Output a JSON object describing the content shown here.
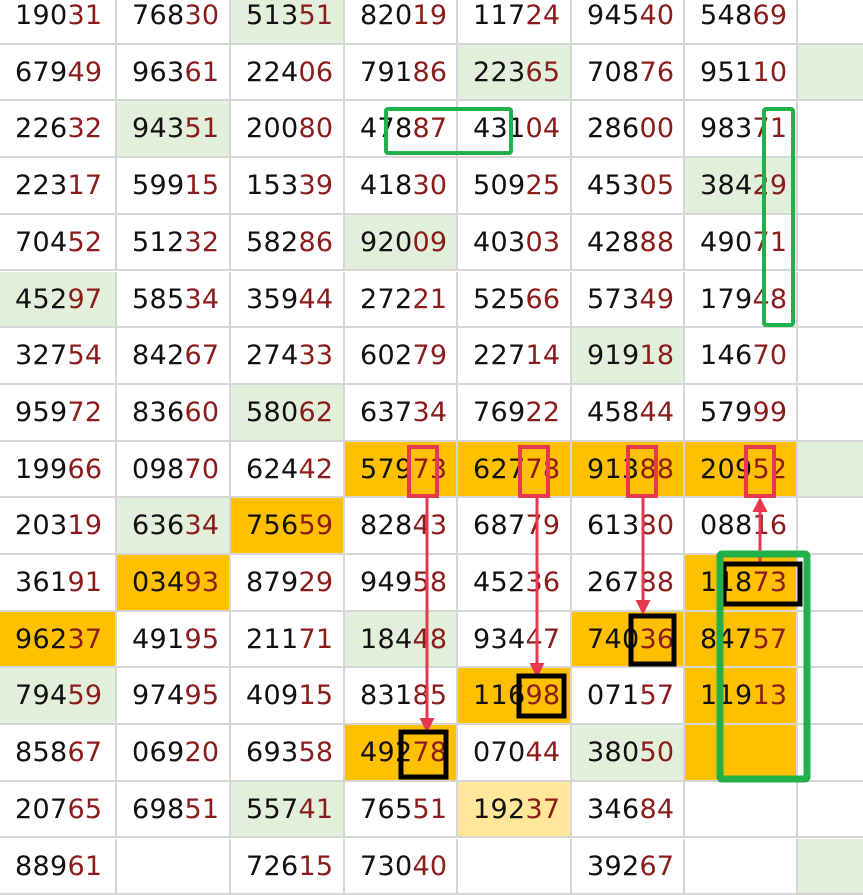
{
  "colors": {
    "green": "#e2efda",
    "orange": "#ffc000",
    "light_yellow": "#ffe699",
    "digit_tail": "#8b1c1c",
    "marker_green": "#22b04a",
    "marker_red": "#e8384f",
    "marker_black": "#000000"
  },
  "rows": [
    [
      "19031",
      "76830",
      "51351",
      "82019",
      "11724",
      "94540",
      "54869",
      ""
    ],
    [
      "67949",
      "96361",
      "22406",
      "79186",
      "22365",
      "70876",
      "95110",
      ""
    ],
    [
      "22632",
      "94351",
      "20080",
      "47887",
      "43104",
      "28600",
      "98371",
      ""
    ],
    [
      "22317",
      "59915",
      "15339",
      "41830",
      "50925",
      "45305",
      "38429",
      ""
    ],
    [
      "70452",
      "51232",
      "58286",
      "92009",
      "40303",
      "42888",
      "49071",
      ""
    ],
    [
      "45297",
      "58534",
      "35944",
      "27221",
      "52566",
      "57349",
      "17948",
      ""
    ],
    [
      "32754",
      "84267",
      "27433",
      "60279",
      "22714",
      "91918",
      "14670",
      ""
    ],
    [
      "95972",
      "83660",
      "58062",
      "63734",
      "76922",
      "45844",
      "57999",
      ""
    ],
    [
      "19966",
      "09870",
      "62442",
      "57973",
      "62778",
      "91388",
      "20952",
      ""
    ],
    [
      "20319",
      "63634",
      "75659",
      "82843",
      "68779",
      "61380",
      "08816",
      ""
    ],
    [
      "36191",
      "03493",
      "87929",
      "94958",
      "45236",
      "26788",
      "11873",
      ""
    ],
    [
      "96237",
      "49195",
      "21171",
      "18448",
      "93447",
      "74036",
      "84757",
      ""
    ],
    [
      "79459",
      "97495",
      "40915",
      "83185",
      "11698",
      "07157",
      "11913",
      ""
    ],
    [
      "85867",
      "06920",
      "69358",
      "49278",
      "07044",
      "38050",
      "",
      ""
    ],
    [
      "20765",
      "69851",
      "55741",
      "76551",
      "19237",
      "34684",
      "",
      ""
    ],
    [
      "88961",
      "",
      "72615",
      "73040",
      "",
      "39267",
      "",
      ""
    ]
  ],
  "highlights": [
    {
      "row": 0,
      "col": 2,
      "color": "green"
    },
    {
      "row": 1,
      "col": 4,
      "color": "green"
    },
    {
      "row": 1,
      "col": 7,
      "color": "green"
    },
    {
      "row": 2,
      "col": 1,
      "color": "green"
    },
    {
      "row": 3,
      "col": 6,
      "color": "green"
    },
    {
      "row": 4,
      "col": 3,
      "color": "green"
    },
    {
      "row": 5,
      "col": 0,
      "color": "green"
    },
    {
      "row": 6,
      "col": 5,
      "color": "green"
    },
    {
      "row": 7,
      "col": 2,
      "color": "green"
    },
    {
      "row": 8,
      "col": 3,
      "color": "orange"
    },
    {
      "row": 8,
      "col": 4,
      "color": "orange"
    },
    {
      "row": 8,
      "col": 5,
      "color": "orange"
    },
    {
      "row": 8,
      "col": 6,
      "color": "orange"
    },
    {
      "row": 8,
      "col": 7,
      "color": "green"
    },
    {
      "row": 9,
      "col": 1,
      "color": "green"
    },
    {
      "row": 9,
      "col": 2,
      "color": "orange"
    },
    {
      "row": 10,
      "col": 1,
      "color": "orange"
    },
    {
      "row": 10,
      "col": 6,
      "color": "orange"
    },
    {
      "row": 11,
      "col": 0,
      "color": "orange"
    },
    {
      "row": 11,
      "col": 3,
      "color": "green"
    },
    {
      "row": 11,
      "col": 5,
      "color": "orange"
    },
    {
      "row": 11,
      "col": 6,
      "color": "orange"
    },
    {
      "row": 12,
      "col": 0,
      "color": "green"
    },
    {
      "row": 12,
      "col": 4,
      "color": "orange"
    },
    {
      "row": 12,
      "col": 6,
      "color": "orange"
    },
    {
      "row": 13,
      "col": 3,
      "color": "orange"
    },
    {
      "row": 13,
      "col": 5,
      "color": "green"
    },
    {
      "row": 13,
      "col": 6,
      "color": "orange"
    },
    {
      "row": 14,
      "col": 2,
      "color": "green"
    },
    {
      "row": 14,
      "col": 4,
      "color": "light_yellow"
    },
    {
      "row": 15,
      "col": 7,
      "color": "green"
    }
  ]
}
